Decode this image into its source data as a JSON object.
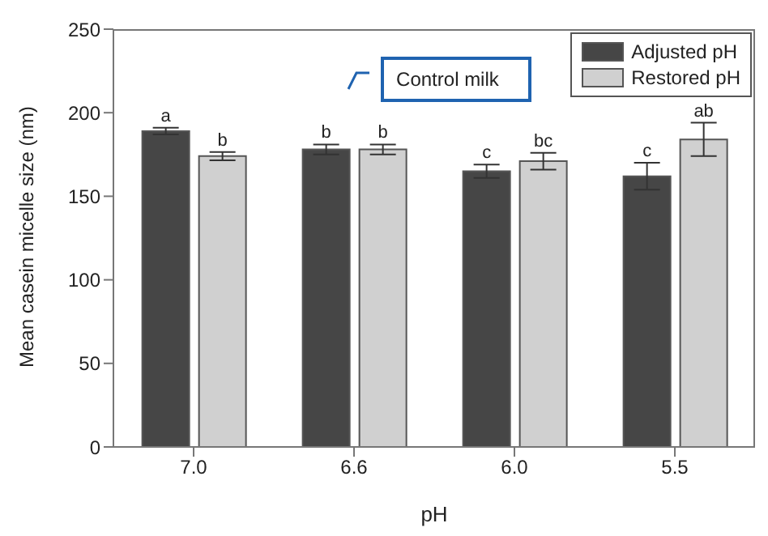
{
  "chart_data": {
    "type": "bar",
    "xlabel": "pH",
    "ylabel": "Mean casein micelle size (nm)",
    "categories": [
      "7.0",
      "6.6",
      "6.0",
      "5.5"
    ],
    "series": [
      {
        "name": "Adjusted pH",
        "color": "#464646",
        "values": [
          189,
          178,
          165,
          162
        ],
        "errors": [
          2,
          3,
          4,
          8
        ],
        "value_labels": [
          "a",
          "b",
          "c",
          "c"
        ]
      },
      {
        "name": "Restored pH",
        "color": "#d0d0d0",
        "values": [
          174,
          178,
          171,
          184
        ],
        "errors": [
          2.5,
          3,
          5,
          10
        ],
        "value_labels": [
          "b",
          "b",
          "bc",
          "ab"
        ]
      }
    ],
    "ylim": [
      0,
      250
    ],
    "yticks": [
      0,
      50,
      100,
      150,
      200,
      250
    ],
    "legend": "top right",
    "annotations": [
      "Control milk"
    ]
  }
}
